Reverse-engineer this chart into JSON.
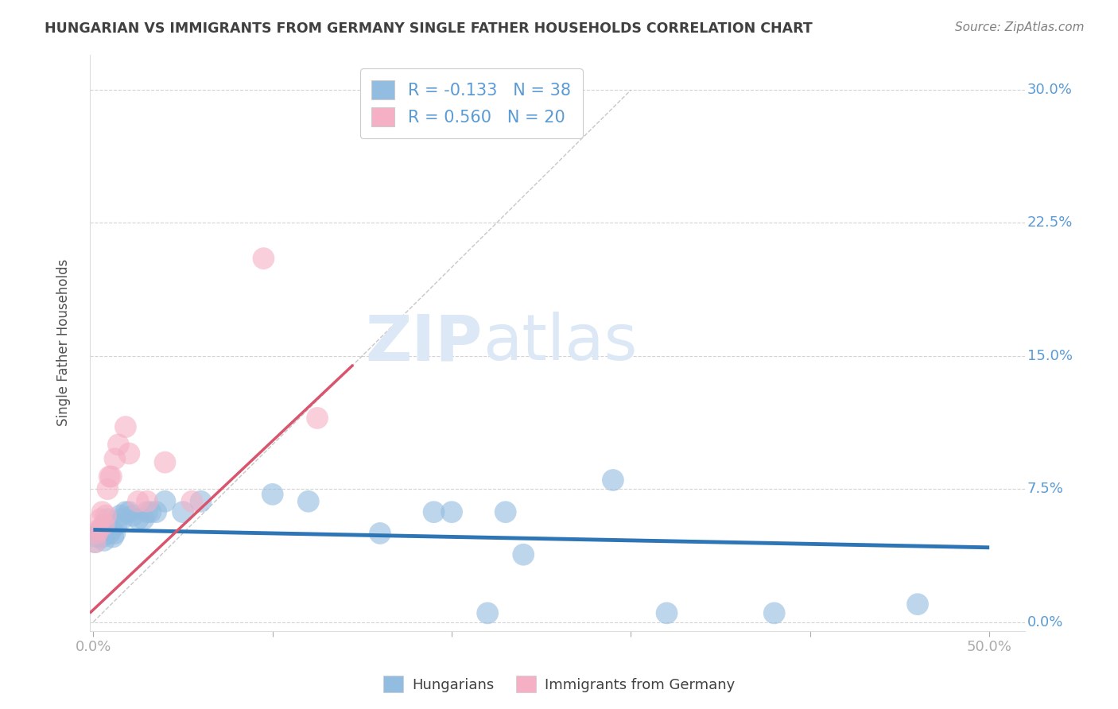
{
  "title": "HUNGARIAN VS IMMIGRANTS FROM GERMANY SINGLE FATHER HOUSEHOLDS CORRELATION CHART",
  "source": "Source: ZipAtlas.com",
  "ylabel_label": "Single Father Households",
  "ylabel_ticks": [
    "0.0%",
    "7.5%",
    "15.0%",
    "22.5%",
    "30.0%"
  ],
  "ylim": [
    -0.005,
    0.32
  ],
  "xlim": [
    -0.002,
    0.52
  ],
  "legend_entries": [
    {
      "label": "Hungarians",
      "R": "-0.133",
      "N": "38",
      "color": "#aac9e8"
    },
    {
      "label": "Immigrants from Germany",
      "R": "0.560",
      "N": "20",
      "color": "#f5b8c8"
    }
  ],
  "blue_scatter": [
    [
      0.001,
      0.045
    ],
    [
      0.002,
      0.048
    ],
    [
      0.003,
      0.05
    ],
    [
      0.004,
      0.052
    ],
    [
      0.005,
      0.048
    ],
    [
      0.006,
      0.046
    ],
    [
      0.007,
      0.055
    ],
    [
      0.008,
      0.058
    ],
    [
      0.009,
      0.05
    ],
    [
      0.01,
      0.052
    ],
    [
      0.011,
      0.048
    ],
    [
      0.012,
      0.05
    ],
    [
      0.013,
      0.055
    ],
    [
      0.015,
      0.06
    ],
    [
      0.016,
      0.058
    ],
    [
      0.018,
      0.062
    ],
    [
      0.02,
      0.062
    ],
    [
      0.022,
      0.06
    ],
    [
      0.025,
      0.058
    ],
    [
      0.028,
      0.058
    ],
    [
      0.03,
      0.062
    ],
    [
      0.032,
      0.062
    ],
    [
      0.035,
      0.062
    ],
    [
      0.04,
      0.068
    ],
    [
      0.05,
      0.062
    ],
    [
      0.06,
      0.068
    ],
    [
      0.1,
      0.072
    ],
    [
      0.12,
      0.068
    ],
    [
      0.16,
      0.05
    ],
    [
      0.19,
      0.062
    ],
    [
      0.2,
      0.062
    ],
    [
      0.23,
      0.062
    ],
    [
      0.24,
      0.038
    ],
    [
      0.29,
      0.08
    ],
    [
      0.46,
      0.01
    ],
    [
      0.22,
      0.005
    ],
    [
      0.32,
      0.005
    ],
    [
      0.38,
      0.005
    ]
  ],
  "pink_scatter": [
    [
      0.001,
      0.045
    ],
    [
      0.002,
      0.05
    ],
    [
      0.003,
      0.052
    ],
    [
      0.004,
      0.058
    ],
    [
      0.005,
      0.062
    ],
    [
      0.006,
      0.055
    ],
    [
      0.007,
      0.06
    ],
    [
      0.008,
      0.075
    ],
    [
      0.009,
      0.082
    ],
    [
      0.01,
      0.082
    ],
    [
      0.012,
      0.092
    ],
    [
      0.014,
      0.1
    ],
    [
      0.018,
      0.11
    ],
    [
      0.02,
      0.095
    ],
    [
      0.025,
      0.068
    ],
    [
      0.03,
      0.068
    ],
    [
      0.04,
      0.09
    ],
    [
      0.055,
      0.068
    ],
    [
      0.095,
      0.205
    ],
    [
      0.125,
      0.115
    ]
  ],
  "blue_line_x": [
    0.0,
    0.5
  ],
  "blue_line_y": [
    0.052,
    0.042
  ],
  "pink_line_x": [
    -0.002,
    0.145
  ],
  "pink_line_y": [
    0.005,
    0.145
  ],
  "diag_line_x": [
    0.0,
    0.3
  ],
  "diag_line_y": [
    0.0,
    0.3
  ],
  "background_color": "#ffffff",
  "grid_color": "#c8c8c8",
  "title_color": "#404040",
  "axis_label_color": "#5b9bd5",
  "scatter_blue_color": "#92bce0",
  "scatter_pink_color": "#f5b0c5",
  "trendline_blue_color": "#2e75b6",
  "trendline_pink_color": "#d9556e",
  "watermark_color": "#dce8f5",
  "source_color": "#808080"
}
